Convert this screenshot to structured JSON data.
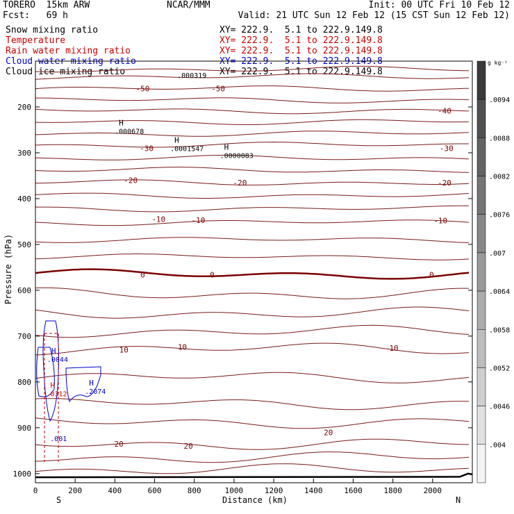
{
  "header": {
    "model": "TORERO  15km ARW",
    "center": "NCAR/MMM",
    "init": "Init: 00 UTC Fri 10 Feb 12",
    "fcst": "Fcst:   69 h",
    "valid": "Valid: 21 UTC Sun 12 Feb 12 (15 CST Sun 12 Feb 12)"
  },
  "legend": [
    {
      "label": "Snow mixing ratio",
      "xy": "XY= 222.9.  5.1 to 222.9.149.8",
      "color": "#000000"
    },
    {
      "label": "Temperature",
      "xy": "XY= 222.9.  5.1 to 222.9.149.8",
      "color": "#cc0000"
    },
    {
      "label": "Rain water mixing ratio",
      "xy": "XY= 222.9.  5.1 to 222.9.149.8",
      "color": "#cc0000"
    },
    {
      "label": "Cloud water mixing ratio",
      "xy": "XY= 222.9.  5.1 to 222.9.149.8",
      "color": "#0000cc"
    },
    {
      "label": "Cloud ice mixing ratio",
      "xy": "XY= 222.9.  5.1 to 222.9.149.8",
      "color": "#000000"
    }
  ],
  "chart_data": {
    "type": "contour",
    "xlabel": "Distance (km)",
    "ylabel": "Pressure (hPa)",
    "xlim": [
      0,
      2200
    ],
    "ylim": [
      1020,
      100
    ],
    "x_ticks": [
      0,
      200,
      400,
      600,
      800,
      1000,
      1200,
      1400,
      1600,
      1800,
      2000
    ],
    "y_ticks": [
      200,
      300,
      400,
      500,
      600,
      700,
      800,
      900,
      1000
    ],
    "y_ticks_unlabeled": [
      100
    ],
    "end_labels": {
      "left": "S",
      "right": "N"
    },
    "colorbar": {
      "unit": "g kg⁻¹",
      "labels": [
        ".0094",
        ".0088",
        ".0082",
        ".0076",
        ".007",
        ".0064",
        ".0058",
        ".0052",
        ".0046",
        ".004"
      ],
      "colors": [
        "#3a3a3a",
        "#505050",
        "#636363",
        "#757575",
        "#878787",
        "#999999",
        "#ababab",
        "#bdbdbd",
        "#cfcfcf",
        "#e1e1e1",
        "#f3f3f3"
      ]
    },
    "temperature_contours": [
      {
        "p": 118,
        "label": ""
      },
      {
        "p": 134,
        "label": ""
      },
      {
        "p": 160,
        "label": "-50"
      },
      {
        "p": 185,
        "label": ""
      },
      {
        "p": 208,
        "label": "-40"
      },
      {
        "p": 232,
        "label": ""
      },
      {
        "p": 258,
        "label": ""
      },
      {
        "p": 283,
        "label": "-30"
      },
      {
        "p": 312,
        "label": ""
      },
      {
        "p": 338,
        "label": ""
      },
      {
        "p": 365,
        "label": "-20"
      },
      {
        "p": 393,
        "label": ""
      },
      {
        "p": 422,
        "label": ""
      },
      {
        "p": 452,
        "label": "-10"
      },
      {
        "p": 490,
        "label": ""
      },
      {
        "p": 527,
        "label": ""
      },
      {
        "p": 565,
        "label": "0"
      },
      {
        "p": 608,
        "label": ""
      },
      {
        "p": 650,
        "label": ""
      },
      {
        "p": 690,
        "label": ""
      },
      {
        "p": 728,
        "label": "10"
      },
      {
        "p": 790,
        "label": ""
      },
      {
        "p": 847,
        "label": ""
      },
      {
        "p": 888,
        "label": "20"
      },
      {
        "p": 935,
        "label": ""
      },
      {
        "p": 965,
        "label": ""
      },
      {
        "p": 992,
        "label": ""
      }
    ],
    "temperature_labels": [
      {
        "text": "-50",
        "x": 540,
        "p": 160
      },
      {
        "text": "-50",
        "x": 920,
        "p": 160
      },
      {
        "text": "-40",
        "x": 2060,
        "p": 208
      },
      {
        "text": "-30",
        "x": 560,
        "p": 290
      },
      {
        "text": "-30",
        "x": 2070,
        "p": 290
      },
      {
        "text": "-20",
        "x": 480,
        "p": 360
      },
      {
        "text": "-20",
        "x": 1030,
        "p": 365
      },
      {
        "text": "-20",
        "x": 2060,
        "p": 365
      },
      {
        "text": "-10",
        "x": 620,
        "p": 445
      },
      {
        "text": "-10",
        "x": 820,
        "p": 447
      },
      {
        "text": "-10",
        "x": 2040,
        "p": 448
      },
      {
        "text": "0",
        "x": 540,
        "p": 566
      },
      {
        "text": "0",
        "x": 890,
        "p": 566
      },
      {
        "text": "0",
        "x": 1995,
        "p": 566
      },
      {
        "text": "10",
        "x": 445,
        "p": 730
      },
      {
        "text": "10",
        "x": 740,
        "p": 724
      },
      {
        "text": "10",
        "x": 1805,
        "p": 726
      },
      {
        "text": "20",
        "x": 420,
        "p": 935
      },
      {
        "text": "20",
        "x": 770,
        "p": 940
      },
      {
        "text": "20",
        "x": 1475,
        "p": 910
      }
    ],
    "extrema": [
      {
        "field": "snow",
        "marker": "H",
        "value": ".000678",
        "x": 420,
        "p": 252,
        "color": "#000000"
      },
      {
        "field": "snow",
        "marker": "H",
        "value": ".0001547",
        "x": 700,
        "p": 290,
        "color": "#000000"
      },
      {
        "field": "snow",
        "marker": "H",
        "value": ".0000083",
        "x": 950,
        "p": 305,
        "color": "#000000"
      },
      {
        "field": "ice",
        "marker": "",
        "value": ".000319",
        "x": 735,
        "p": 130,
        "color": "#000000"
      },
      {
        "field": "cloud_water",
        "marker": "H",
        "value": ".0044",
        "x": 80,
        "p": 750,
        "color": "#0000cc"
      },
      {
        "field": "cloud_water",
        "marker": "H",
        "value": ".2074",
        "x": 270,
        "p": 820,
        "color": "#0000cc"
      },
      {
        "field": "cloud_water",
        "marker": "",
        "value": ".001",
        "x": 95,
        "p": 923,
        "color": "#0000cc"
      },
      {
        "field": "rain",
        "marker": "H",
        "value": ".0312",
        "x": 75,
        "p": 825,
        "color": "#cc0000"
      }
    ]
  }
}
